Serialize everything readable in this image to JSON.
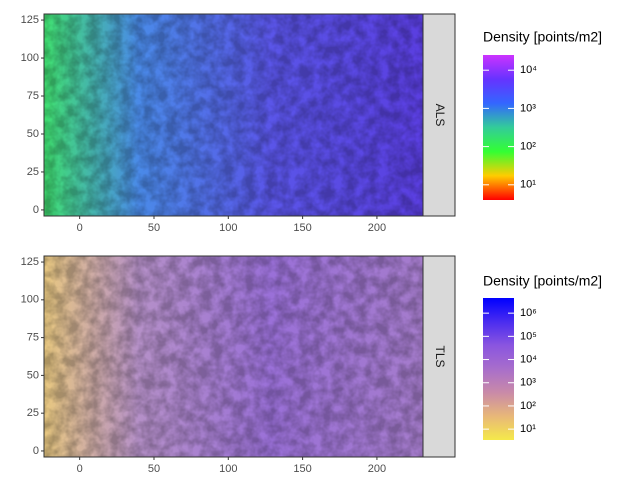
{
  "chart_data": [
    {
      "type": "raster",
      "facet": "ALS",
      "xlim": [
        -24,
        231
      ],
      "ylim": [
        -4,
        129
      ],
      "xticks": [
        0,
        50,
        100,
        150,
        200
      ],
      "yticks": [
        0,
        25,
        50,
        75,
        100,
        125
      ],
      "legend": {
        "title": "Density [points/m2]",
        "log_scale": true,
        "lim": [
          4,
          25000
        ],
        "ticks": [
          {
            "value": 10,
            "label": "10¹"
          },
          {
            "value": 100,
            "label": "10²"
          },
          {
            "value": 1000,
            "label": "10³"
          },
          {
            "value": 10000,
            "label": "10⁴"
          }
        ],
        "colors": [
          "#ff0000",
          "#ffcc00",
          "#33ff33",
          "#33cc99",
          "#3366ff",
          "#6633ff",
          "#cc33ff"
        ]
      }
    },
    {
      "type": "raster",
      "facet": "TLS",
      "xlim": [
        -24,
        231
      ],
      "ylim": [
        -4,
        129
      ],
      "xticks": [
        0,
        50,
        100,
        150,
        200
      ],
      "yticks": [
        0,
        25,
        50,
        75,
        100,
        125
      ],
      "legend": {
        "title": "Density [points/m2]",
        "log_scale": true,
        "lim": [
          3.4,
          4500000
        ],
        "ticks": [
          {
            "value": 10,
            "label": "10¹"
          },
          {
            "value": 100,
            "label": "10²"
          },
          {
            "value": 1000,
            "label": "10³"
          },
          {
            "value": 10000,
            "label": "10⁴"
          },
          {
            "value": 100000,
            "label": "10⁵"
          },
          {
            "value": 1000000,
            "label": "10⁶"
          }
        ],
        "colors": [
          "#f5e94a",
          "#e8b878",
          "#c98aa8",
          "#a86ecb",
          "#8a55e0",
          "#4a2cf0",
          "#0000ff"
        ]
      }
    }
  ]
}
